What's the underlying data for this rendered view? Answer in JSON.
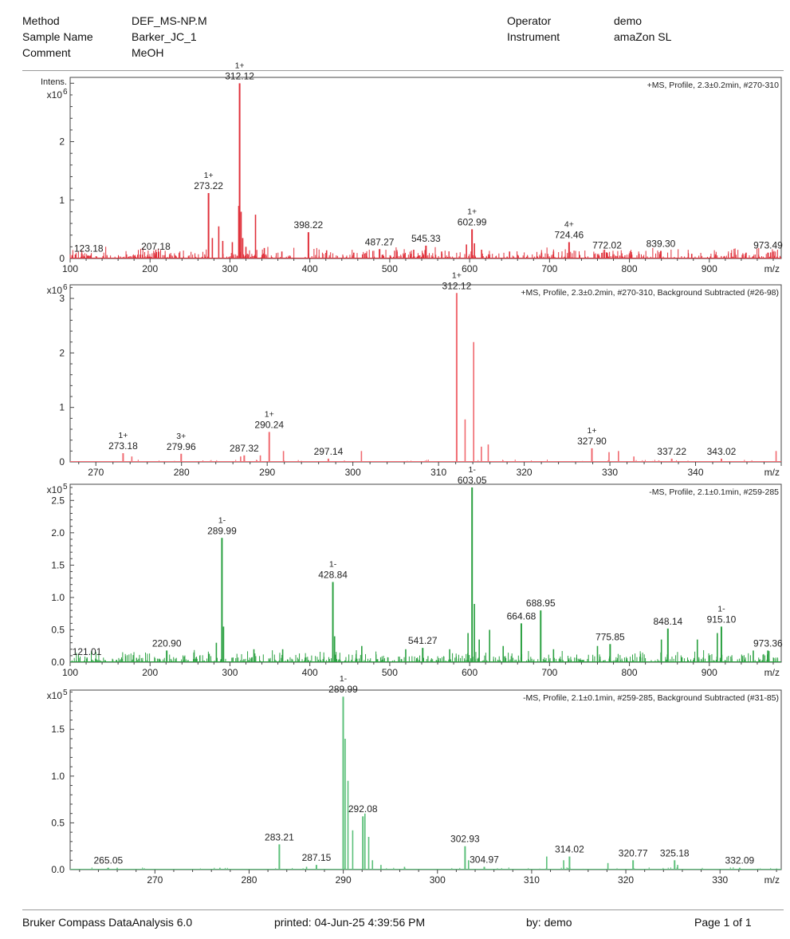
{
  "header": {
    "left_labels": [
      "Method",
      "Sample Name",
      "Comment"
    ],
    "left_values": [
      "DEF_MS-NP.M",
      "Barker_JC_1",
      "MeOH"
    ],
    "right_labels": [
      "Operator",
      "Instrument"
    ],
    "right_values": [
      "demo",
      "amaZon SL"
    ]
  },
  "footer": {
    "software": "Bruker Compass DataAnalysis 6.0",
    "printed": "printed:   04-Jun-25 4:39:56 PM",
    "by": "by:   demo",
    "page": "Page 1 of 1"
  },
  "colors": {
    "red": "#e0303a",
    "green": "#2aa040",
    "lightred": "#f06a70",
    "lightgreen": "#5cc07a"
  },
  "chart_data": [
    {
      "type": "line",
      "title": "+MS, Profile, 2.3±0.2min, #270-310",
      "ylabel": "Intens.",
      "exponent": "x10",
      "exponent_power": "6",
      "xlabel": "m/z",
      "xlim": [
        100,
        990
      ],
      "ylim": [
        0,
        3.1
      ],
      "xticks": [
        100,
        200,
        300,
        400,
        500,
        600,
        700,
        800,
        900
      ],
      "yticks": [
        0,
        1,
        2
      ],
      "color": "#e0303a",
      "peaks": [
        {
          "x": 123.18,
          "y": 0.05,
          "label": "123.18",
          "charge": ""
        },
        {
          "x": 207.18,
          "y": 0.08,
          "label": "207.18",
          "charge": ""
        },
        {
          "x": 273.22,
          "y": 1.12,
          "label": "273.22",
          "charge": "1+"
        },
        {
          "x": 312.12,
          "y": 3.0,
          "label": "312.12",
          "charge": "1+"
        },
        {
          "x": 398.22,
          "y": 0.45,
          "label": "398.22",
          "charge": ""
        },
        {
          "x": 487.27,
          "y": 0.16,
          "label": "487.27",
          "charge": ""
        },
        {
          "x": 545.33,
          "y": 0.22,
          "label": "545.33",
          "charge": ""
        },
        {
          "x": 602.99,
          "y": 0.5,
          "label": "602.99",
          "charge": "1+"
        },
        {
          "x": 724.46,
          "y": 0.28,
          "label": "724.46",
          "charge": "4+"
        },
        {
          "x": 772.02,
          "y": 0.1,
          "label": "772.02",
          "charge": ""
        },
        {
          "x": 839.3,
          "y": 0.13,
          "label": "839.30",
          "charge": ""
        },
        {
          "x": 973.49,
          "y": 0.1,
          "label": "973.49",
          "charge": ""
        }
      ],
      "minor_peaks": [
        {
          "x": 278,
          "y": 0.35
        },
        {
          "x": 286,
          "y": 0.55
        },
        {
          "x": 291,
          "y": 0.3
        },
        {
          "x": 303,
          "y": 0.28
        },
        {
          "x": 311,
          "y": 0.9
        },
        {
          "x": 314,
          "y": 0.8
        },
        {
          "x": 316,
          "y": 0.35
        },
        {
          "x": 320,
          "y": 0.2
        },
        {
          "x": 332,
          "y": 0.75
        },
        {
          "x": 343,
          "y": 0.18
        },
        {
          "x": 365,
          "y": 0.12
        },
        {
          "x": 421,
          "y": 0.14
        },
        {
          "x": 455,
          "y": 0.1
        },
        {
          "x": 530,
          "y": 0.15
        },
        {
          "x": 565,
          "y": 0.12
        },
        {
          "x": 596,
          "y": 0.24
        },
        {
          "x": 606,
          "y": 0.26
        },
        {
          "x": 615,
          "y": 0.15
        },
        {
          "x": 650,
          "y": 0.12
        },
        {
          "x": 690,
          "y": 0.1
        },
        {
          "x": 705,
          "y": 0.12
        },
        {
          "x": 812,
          "y": 0.08
        },
        {
          "x": 878,
          "y": 0.08
        },
        {
          "x": 946,
          "y": 0.1
        }
      ]
    },
    {
      "type": "line",
      "title": "+MS, Profile, 2.3±0.2min, #270-310, Background Subtracted (#26-98)",
      "ylabel": "",
      "exponent": "x10",
      "exponent_power": "6",
      "xlabel": "m/z",
      "xlim": [
        267,
        350
      ],
      "ylim": [
        0,
        3.25
      ],
      "xticks": [
        270,
        280,
        290,
        300,
        310,
        320,
        330,
        340
      ],
      "yticks": [
        0,
        1,
        2,
        3
      ],
      "color": "#f06a70",
      "peaks": [
        {
          "x": 273.18,
          "y": 0.16,
          "label": "273.18",
          "charge": "1+"
        },
        {
          "x": 279.96,
          "y": 0.15,
          "label": "279.96",
          "charge": "3+"
        },
        {
          "x": 287.32,
          "y": 0.12,
          "label": "287.32",
          "charge": ""
        },
        {
          "x": 290.24,
          "y": 0.55,
          "label": "290.24",
          "charge": "1+"
        },
        {
          "x": 297.14,
          "y": 0.06,
          "label": "297.14",
          "charge": ""
        },
        {
          "x": 312.12,
          "y": 3.1,
          "label": "312.12",
          "charge": "1+"
        },
        {
          "x": 327.9,
          "y": 0.25,
          "label": "327.90",
          "charge": "1+"
        },
        {
          "x": 337.22,
          "y": 0.06,
          "label": "337.22",
          "charge": ""
        },
        {
          "x": 343.02,
          "y": 0.06,
          "label": "343.02",
          "charge": ""
        }
      ],
      "minor_peaks": [
        {
          "x": 274.2,
          "y": 0.1
        },
        {
          "x": 286.9,
          "y": 0.1
        },
        {
          "x": 289.2,
          "y": 0.12
        },
        {
          "x": 291.9,
          "y": 0.2
        },
        {
          "x": 301.0,
          "y": 0.2
        },
        {
          "x": 313.1,
          "y": 0.78
        },
        {
          "x": 314.1,
          "y": 2.2
        },
        {
          "x": 315.0,
          "y": 0.28
        },
        {
          "x": 315.8,
          "y": 0.32
        },
        {
          "x": 329.9,
          "y": 0.18
        },
        {
          "x": 331.0,
          "y": 0.2
        },
        {
          "x": 332.8,
          "y": 0.1
        },
        {
          "x": 349.4,
          "y": 0.2
        }
      ]
    },
    {
      "type": "line",
      "title": "-MS, Profile, 2.1±0.1min, #259-285",
      "ylabel": "",
      "exponent": "x10",
      "exponent_power": "5",
      "xlabel": "m/z",
      "xlim": [
        100,
        990
      ],
      "ylim": [
        0,
        2.75
      ],
      "xticks": [
        100,
        200,
        300,
        400,
        500,
        600,
        700,
        800,
        900
      ],
      "yticks": [
        0.0,
        0.5,
        1.0,
        1.5,
        2.0,
        2.5
      ],
      "color": "#2aa040",
      "peaks": [
        {
          "x": 121.01,
          "y": 0.05,
          "label": "121.01",
          "charge": ""
        },
        {
          "x": 220.9,
          "y": 0.18,
          "label": "220.90",
          "charge": ""
        },
        {
          "x": 289.99,
          "y": 1.92,
          "label": "289.99",
          "charge": "1-"
        },
        {
          "x": 428.84,
          "y": 1.24,
          "label": "428.84",
          "charge": "1-"
        },
        {
          "x": 541.27,
          "y": 0.22,
          "label": "541.27",
          "charge": ""
        },
        {
          "x": 603.05,
          "y": 2.7,
          "label": "603.05",
          "charge": "1-"
        },
        {
          "x": 664.68,
          "y": 0.6,
          "label": "664.68",
          "charge": ""
        },
        {
          "x": 688.95,
          "y": 0.8,
          "label": "688.95",
          "charge": ""
        },
        {
          "x": 775.85,
          "y": 0.28,
          "label": "775.85",
          "charge": ""
        },
        {
          "x": 848.14,
          "y": 0.52,
          "label": "848.14",
          "charge": ""
        },
        {
          "x": 915.1,
          "y": 0.55,
          "label": "915.10",
          "charge": "1-"
        },
        {
          "x": 973.36,
          "y": 0.18,
          "label": "973.36",
          "charge": ""
        }
      ],
      "minor_peaks": [
        {
          "x": 255,
          "y": 0.15
        },
        {
          "x": 283,
          "y": 0.3
        },
        {
          "x": 292,
          "y": 0.55
        },
        {
          "x": 330,
          "y": 0.2
        },
        {
          "x": 366,
          "y": 0.2
        },
        {
          "x": 431,
          "y": 0.4
        },
        {
          "x": 465,
          "y": 0.25
        },
        {
          "x": 520,
          "y": 0.2
        },
        {
          "x": 575,
          "y": 0.2
        },
        {
          "x": 598,
          "y": 0.45
        },
        {
          "x": 606,
          "y": 0.9
        },
        {
          "x": 612,
          "y": 0.35
        },
        {
          "x": 625,
          "y": 0.5
        },
        {
          "x": 642,
          "y": 0.25
        },
        {
          "x": 705,
          "y": 0.2
        },
        {
          "x": 760,
          "y": 0.25
        },
        {
          "x": 840,
          "y": 0.35
        },
        {
          "x": 885,
          "y": 0.35
        },
        {
          "x": 910,
          "y": 0.45
        },
        {
          "x": 955,
          "y": 0.18
        }
      ]
    },
    {
      "type": "line",
      "title": "-MS, Profile, 2.1±0.1min, #259-285, Background Subtracted (#31-85)",
      "ylabel": "",
      "exponent": "x10",
      "exponent_power": "5",
      "xlabel": "m/z",
      "xlim": [
        261,
        336.5
      ],
      "ylim": [
        0,
        1.92
      ],
      "xticks": [
        270,
        280,
        290,
        300,
        310,
        320,
        330
      ],
      "yticks": [
        0.0,
        0.5,
        1.0,
        1.5
      ],
      "color": "#5cc07a",
      "peaks": [
        {
          "x": 265.05,
          "y": 0.02,
          "label": "265.05",
          "charge": ""
        },
        {
          "x": 283.21,
          "y": 0.27,
          "label": "283.21",
          "charge": ""
        },
        {
          "x": 287.15,
          "y": 0.05,
          "label": "287.15",
          "charge": ""
        },
        {
          "x": 289.99,
          "y": 1.85,
          "label": "289.99",
          "charge": "1-"
        },
        {
          "x": 292.08,
          "y": 0.57,
          "label": "292.08",
          "charge": ""
        },
        {
          "x": 302.93,
          "y": 0.25,
          "label": "302.93",
          "charge": ""
        },
        {
          "x": 304.97,
          "y": 0.03,
          "label": "304.97",
          "charge": ""
        },
        {
          "x": 314.02,
          "y": 0.14,
          "label": "314.02",
          "charge": ""
        },
        {
          "x": 320.77,
          "y": 0.1,
          "label": "320.77",
          "charge": ""
        },
        {
          "x": 325.18,
          "y": 0.1,
          "label": "325.18",
          "charge": ""
        },
        {
          "x": 332.09,
          "y": 0.02,
          "label": "332.09",
          "charge": ""
        }
      ],
      "minor_peaks": [
        {
          "x": 266.0,
          "y": 0.02
        },
        {
          "x": 276.9,
          "y": 0.02
        },
        {
          "x": 286.1,
          "y": 0.03
        },
        {
          "x": 290.2,
          "y": 1.4
        },
        {
          "x": 290.5,
          "y": 0.95
        },
        {
          "x": 291.0,
          "y": 0.42
        },
        {
          "x": 292.3,
          "y": 0.6
        },
        {
          "x": 292.7,
          "y": 0.35
        },
        {
          "x": 293.1,
          "y": 0.1
        },
        {
          "x": 294.0,
          "y": 0.05
        },
        {
          "x": 296.5,
          "y": 0.03
        },
        {
          "x": 303.3,
          "y": 0.1
        },
        {
          "x": 311.6,
          "y": 0.14
        },
        {
          "x": 313.4,
          "y": 0.1
        },
        {
          "x": 318.1,
          "y": 0.07
        },
        {
          "x": 325.5,
          "y": 0.05
        }
      ]
    }
  ]
}
